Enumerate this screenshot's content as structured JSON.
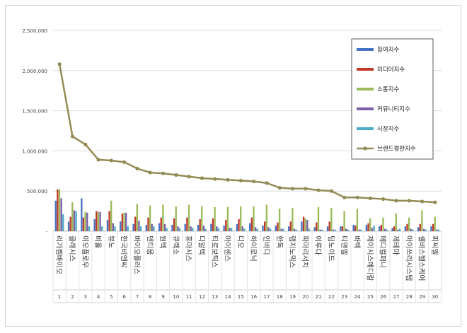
{
  "chart_data": {
    "type": "bar",
    "title": "",
    "xlabel": "",
    "ylabel": "",
    "ylim": [
      0,
      2500000
    ],
    "yticks": [
      0,
      500000,
      1000000,
      1500000,
      2000000,
      2500000
    ],
    "ytick_labels": [
      "-",
      "500,000",
      "1,000,000",
      "1,500,000",
      "2,000,000",
      "2,500,000"
    ],
    "grid": true,
    "legend_position": "top-right",
    "categories": [
      "리가켐바이오",
      "클래시스",
      "이오플로우",
      "비올",
      "뷰노",
      "한국비엔씨",
      "바이오플러스",
      "덴티움",
      "원텍",
      "큐렉소",
      "휴마시스",
      "디알텍",
      "티로보틱스",
      "아이센스",
      "디오",
      "하이로닉",
      "인바디",
      "한독",
      "랩지노믹스",
      "파마리서치",
      "이루다",
      "딥노이드",
      "티앤엘",
      "바텍",
      "제이시스메디칼",
      "메디컬퍼니",
      "제테마",
      "아이쓰리시스템",
      "셀바스헬스케어",
      "피씨엘"
    ],
    "rank_labels": [
      "1",
      "2",
      "3",
      "4",
      "5",
      "6",
      "7",
      "8",
      "9",
      "10",
      "11",
      "12",
      "13",
      "14",
      "15",
      "16",
      "17",
      "18",
      "19",
      "20",
      "21",
      "22",
      "23",
      "24",
      "25",
      "26",
      "27",
      "28",
      "29",
      "30"
    ],
    "series": [
      {
        "name": "참여지수",
        "color": "#4472c4",
        "values": [
          380000,
          120000,
          410000,
          150000,
          140000,
          120000,
          90000,
          80000,
          100000,
          80000,
          90000,
          80000,
          90000,
          70000,
          90000,
          100000,
          70000,
          70000,
          60000,
          120000,
          50000,
          60000,
          60000,
          80000,
          80000,
          60000,
          40000,
          60000,
          50000,
          60000
        ]
      },
      {
        "name": "미디어지수",
        "color": "#c0392b",
        "values": [
          520000,
          180000,
          170000,
          250000,
          250000,
          220000,
          180000,
          170000,
          170000,
          160000,
          170000,
          150000,
          160000,
          140000,
          150000,
          170000,
          120000,
          110000,
          120000,
          180000,
          110000,
          120000,
          60000,
          70000,
          100000,
          80000,
          60000,
          90000,
          90000,
          90000
        ]
      },
      {
        "name": "소통지수",
        "color": "#9bbb59",
        "values": [
          520000,
          360000,
          240000,
          240000,
          380000,
          230000,
          340000,
          320000,
          330000,
          310000,
          330000,
          310000,
          300000,
          300000,
          310000,
          310000,
          330000,
          280000,
          290000,
          160000,
          300000,
          290000,
          250000,
          280000,
          160000,
          170000,
          220000,
          170000,
          260000,
          180000
        ]
      },
      {
        "name": "커뮤니티지수",
        "color": "#7b5ea7",
        "values": [
          410000,
          260000,
          230000,
          240000,
          100000,
          230000,
          130000,
          90000,
          90000,
          60000,
          60000,
          70000,
          60000,
          40000,
          60000,
          50000,
          50000,
          30000,
          30000,
          140000,
          20000,
          20000,
          30000,
          20000,
          40000,
          30000,
          20000,
          30000,
          30000,
          20000
        ]
      },
      {
        "name": "시장지수",
        "color": "#4bacc6",
        "values": [
          210000,
          250000,
          60000,
          60000,
          60000,
          60000,
          60000,
          60000,
          40000,
          40000,
          40000,
          30000,
          40000,
          40000,
          30000,
          30000,
          30000,
          30000,
          20000,
          30000,
          20000,
          20000,
          20000,
          20000,
          70000,
          20000,
          30000,
          20000,
          20000,
          20000
        ]
      }
    ],
    "line_series": {
      "name": "브랜드평판지수",
      "color": "#948a54",
      "values": [
        2080000,
        1180000,
        1080000,
        890000,
        880000,
        860000,
        780000,
        730000,
        720000,
        700000,
        680000,
        660000,
        650000,
        640000,
        630000,
        620000,
        600000,
        540000,
        530000,
        530000,
        510000,
        500000,
        420000,
        420000,
        410000,
        400000,
        380000,
        380000,
        370000,
        360000
      ]
    }
  }
}
